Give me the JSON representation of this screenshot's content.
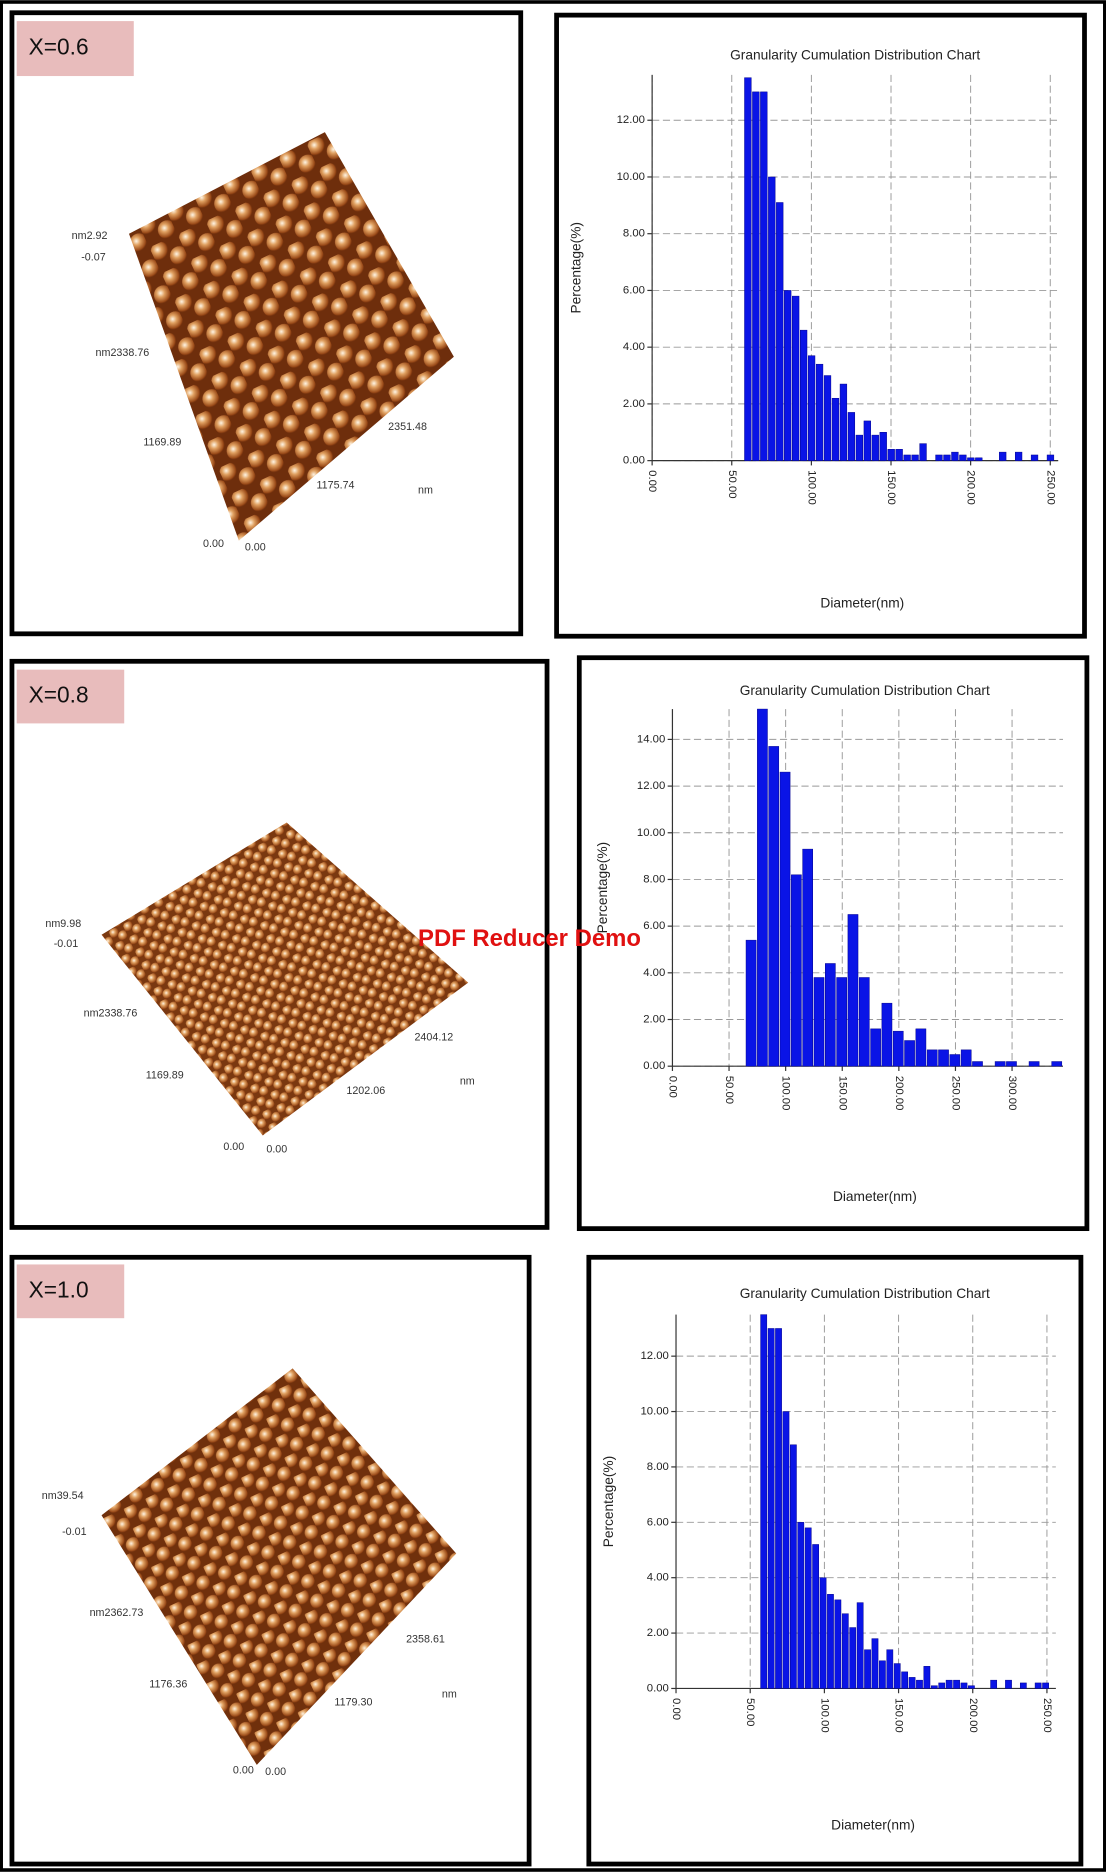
{
  "panels": [
    {
      "label": "X=0.6",
      "afm_labels": [
        "nm2.92",
        "-0.07",
        "nm2338.76",
        "1169.89",
        "0.00",
        "0.00",
        "1175.74",
        "2351.48",
        "nm"
      ]
    },
    {
      "label": "X=0.8",
      "afm_labels": [
        "nm9.98",
        "-0.01",
        "nm2338.76",
        "1169.89",
        "0.00",
        "0.00",
        "1202.06",
        "2404.12",
        "nm"
      ]
    },
    {
      "label": "X=1.0",
      "afm_labels": [
        "nm39.54",
        "-0.01",
        "nm2362.73",
        "1176.36",
        "0.00",
        "0.00",
        "1179.30",
        "2358.61",
        "nm"
      ]
    }
  ],
  "watermark": "PDF Reducer Demo",
  "chart_data": [
    {
      "type": "histogram",
      "title": "Granularity Cumulation Distribution Chart",
      "x_label": "Diameter(nm)",
      "y_label": "Percentage(%)",
      "color": "#0a14e6",
      "grid": true,
      "bins": [
        58,
        63,
        68,
        73,
        78,
        83,
        88,
        93,
        98,
        103,
        108,
        113,
        118,
        123,
        128,
        133,
        138,
        143,
        148,
        153,
        158,
        163,
        168,
        173,
        178,
        183,
        188,
        193,
        198,
        203,
        208,
        213,
        218,
        223,
        228,
        233,
        238,
        243,
        248,
        253
      ],
      "values": [
        13.5,
        13.0,
        13.0,
        10.0,
        9.1,
        6.0,
        5.8,
        4.6,
        3.7,
        3.4,
        3.0,
        2.2,
        2.7,
        1.7,
        0.9,
        1.4,
        0.9,
        1.0,
        0.4,
        0.4,
        0.2,
        0.2,
        0.6,
        0,
        0.2,
        0.2,
        0.3,
        0.2,
        0.1,
        0.1,
        0,
        0,
        0.3,
        0,
        0.3,
        0,
        0.2,
        0,
        0.2
      ],
      "xlim": [
        0,
        255
      ],
      "ylim": [
        0,
        13.6
      ],
      "xticks": [
        {
          "value": 0,
          "label": "0.00"
        },
        {
          "value": 50,
          "label": "50.00"
        },
        {
          "value": 100,
          "label": "100.00"
        },
        {
          "value": 150,
          "label": "150.00"
        },
        {
          "value": 200,
          "label": "200.00"
        },
        {
          "value": 250,
          "label": "250.00"
        }
      ],
      "yticks": [
        {
          "value": 0,
          "label": "0.00"
        },
        {
          "value": 2,
          "label": "2.00"
        },
        {
          "value": 4,
          "label": "4.00"
        },
        {
          "value": 6,
          "label": "6.00"
        },
        {
          "value": 8,
          "label": "8.00"
        },
        {
          "value": 10,
          "label": "10.00"
        },
        {
          "value": 12,
          "label": "12.00"
        }
      ]
    },
    {
      "type": "histogram",
      "title": "Granularity Cumulation Distribution Chart",
      "x_label": "Diameter(nm)",
      "y_label": "Percentage(%)",
      "color": "#0a14e6",
      "grid": true,
      "bins": [
        65,
        75,
        85,
        95,
        105,
        115,
        125,
        135,
        145,
        155,
        165,
        175,
        185,
        195,
        205,
        215,
        225,
        235,
        245,
        255,
        265,
        275,
        285,
        295,
        305,
        315,
        325,
        335,
        345
      ],
      "values": [
        5.4,
        15.3,
        13.7,
        12.6,
        8.2,
        9.3,
        3.8,
        4.4,
        3.8,
        6.5,
        3.8,
        1.6,
        2.7,
        1.5,
        1.1,
        1.6,
        0.7,
        0.7,
        0.5,
        0.7,
        0.2,
        0,
        0.2,
        0.2,
        0,
        0.2,
        0,
        0.2
      ],
      "xlim": [
        0,
        345
      ],
      "ylim": [
        0,
        15.3
      ],
      "xticks": [
        {
          "value": 0,
          "label": "0.00"
        },
        {
          "value": 50,
          "label": "50.00"
        },
        {
          "value": 100,
          "label": "100.00"
        },
        {
          "value": 150,
          "label": "150.00"
        },
        {
          "value": 200,
          "label": "200.00"
        },
        {
          "value": 250,
          "label": "250.00"
        },
        {
          "value": 300,
          "label": "300.00"
        }
      ],
      "yticks": [
        {
          "value": 0,
          "label": "0.00"
        },
        {
          "value": 2,
          "label": "2.00"
        },
        {
          "value": 4,
          "label": "4.00"
        },
        {
          "value": 6,
          "label": "6.00"
        },
        {
          "value": 8,
          "label": "8.00"
        },
        {
          "value": 10,
          "label": "10.00"
        },
        {
          "value": 12,
          "label": "12.00"
        },
        {
          "value": 14,
          "label": "14.00"
        }
      ]
    },
    {
      "type": "histogram",
      "title": "Granularity Cumulation Distribution Chart",
      "x_label": "Diameter(nm)",
      "y_label": "Percentage(%)",
      "color": "#0a14e6",
      "grid": true,
      "bins": [
        57,
        62,
        67,
        72,
        77,
        82,
        87,
        92,
        97,
        102,
        107,
        112,
        117,
        122,
        127,
        132,
        137,
        142,
        147,
        152,
        157,
        162,
        167,
        172,
        177,
        182,
        187,
        192,
        197,
        202,
        207,
        212,
        217,
        222,
        227,
        232,
        237,
        242,
        247,
        252
      ],
      "values": [
        13.5,
        13.0,
        13.0,
        10.0,
        8.8,
        6.0,
        5.8,
        5.2,
        4.0,
        3.4,
        3.2,
        2.7,
        2.2,
        3.1,
        1.4,
        1.8,
        1.0,
        1.4,
        0.9,
        0.6,
        0.4,
        0.3,
        0.8,
        0.1,
        0.2,
        0.3,
        0.3,
        0.2,
        0.1,
        0,
        0,
        0.3,
        0,
        0.3,
        0,
        0.2,
        0,
        0.2,
        0.2
      ],
      "xlim": [
        0,
        256
      ],
      "ylim": [
        0,
        13.5
      ],
      "xticks": [
        {
          "value": 0,
          "label": "0.00"
        },
        {
          "value": 50,
          "label": "50.00"
        },
        {
          "value": 100,
          "label": "100.00"
        },
        {
          "value": 150,
          "label": "150.00"
        },
        {
          "value": 200,
          "label": "200.00"
        },
        {
          "value": 250,
          "label": "250.00"
        }
      ],
      "yticks": [
        {
          "value": 0,
          "label": "0.00"
        },
        {
          "value": 2,
          "label": "2.00"
        },
        {
          "value": 4,
          "label": "4.00"
        },
        {
          "value": 6,
          "label": "6.00"
        },
        {
          "value": 8,
          "label": "8.00"
        },
        {
          "value": 10,
          "label": "10.00"
        },
        {
          "value": 12,
          "label": "12.00"
        }
      ]
    }
  ]
}
